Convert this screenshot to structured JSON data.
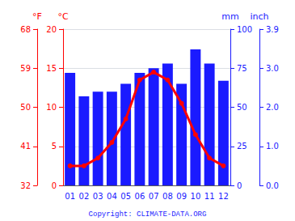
{
  "chart_data": {
    "type": "bar",
    "categories": [
      "01",
      "02",
      "03",
      "04",
      "05",
      "06",
      "07",
      "08",
      "09",
      "10",
      "11",
      "12"
    ],
    "series": [
      {
        "type": "bar",
        "color": "#1a1aff",
        "axis": "y2",
        "values": [
          72,
          57,
          60,
          60,
          65,
          72,
          75,
          78,
          65,
          87,
          78,
          67
        ]
      },
      {
        "type": "line",
        "color": "#ff0000",
        "marker": "circle",
        "values": [
          2.5,
          2.5,
          3.5,
          5.5,
          8.5,
          13.5,
          14.5,
          13.5,
          10.5,
          6.5,
          3.5,
          2.5
        ]
      }
    ],
    "ylabel": "°C",
    "ylim": [
      0,
      20
    ],
    "yticks": [
      0,
      5,
      10,
      15,
      20
    ],
    "y2label": "mm",
    "y2lim": [
      0,
      100
    ],
    "y2ticks": [
      0,
      25,
      50,
      75,
      100
    ],
    "y3label": "°F",
    "y3lim": [
      0,
      20
    ],
    "y3ticks": [
      {
        "value": 0,
        "label": "32"
      },
      {
        "value": 5,
        "label": "41"
      },
      {
        "value": 10,
        "label": "50"
      },
      {
        "value": 15,
        "label": "59"
      },
      {
        "value": 20,
        "label": "68"
      }
    ],
    "y4label": "inch",
    "y4lim": [
      0,
      100
    ],
    "y4ticks": [
      {
        "value": 0,
        "label": "0.0"
      },
      {
        "value": 25,
        "label": "1.0"
      },
      {
        "value": 50,
        "label": "2.0"
      },
      {
        "value": 75,
        "label": "3.0"
      },
      {
        "value": 100,
        "label": "3.9"
      }
    ],
    "grid": true,
    "annotation": "Copyright: CLIMATE-DATA.ORG"
  }
}
